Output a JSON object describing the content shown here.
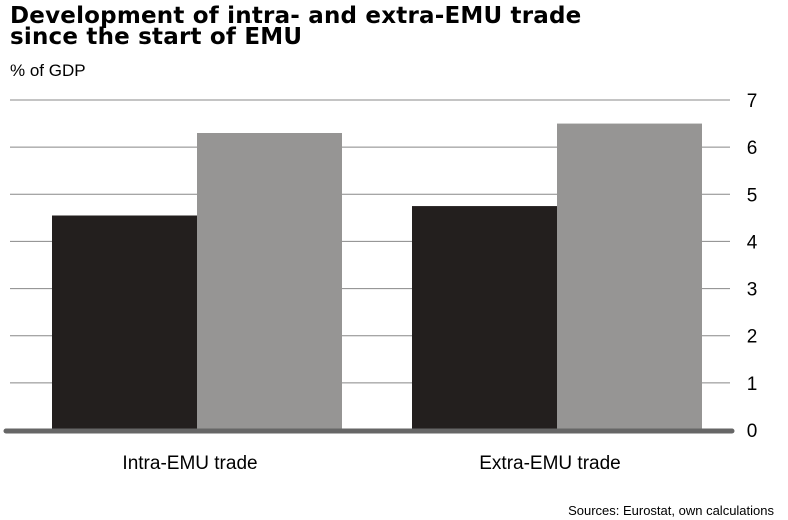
{
  "title_lines": [
    "Development of intra- and extra-EMU trade",
    "since the start of EMU"
  ],
  "subtitle": "% of GDP",
  "source": "Sources: Eurostat, own calculations",
  "colors": {
    "series1": "#231f1e",
    "series2": "#969594",
    "grid": "#888888",
    "baseline": "#666666"
  },
  "chart_data": {
    "type": "bar",
    "categories": [
      "Intra-EMU trade",
      "Extra-EMU trade"
    ],
    "series": [
      {
        "values": [
          4.55,
          4.75
        ]
      },
      {
        "values": [
          6.3,
          6.5
        ]
      }
    ],
    "ylim": [
      0,
      7
    ],
    "yticks": [
      "0",
      "1",
      "2",
      "3",
      "4",
      "5",
      "6",
      "7"
    ],
    "y_axis_position": "right",
    "grid": true,
    "legend": "none"
  }
}
